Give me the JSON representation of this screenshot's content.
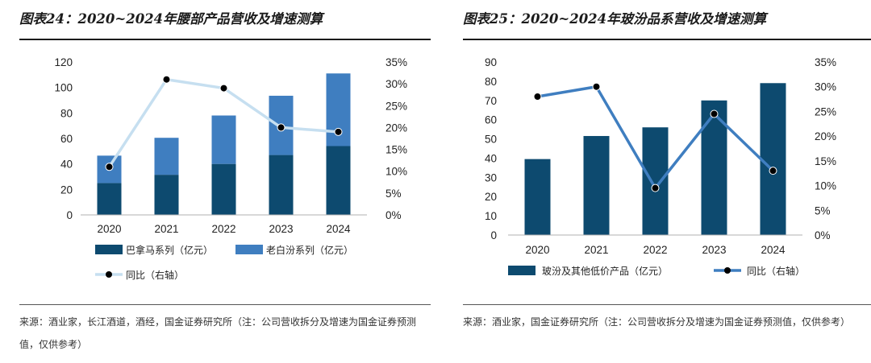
{
  "panels": [
    {
      "title": "图表24：2020~2024年腰部产品营收及增速测算",
      "source": "来源：酒业家，长江酒道，酒经，国金证券研究所（注：公司营收拆分及增速为国金证券预测值，仅供参考）"
    },
    {
      "title": "图表25：2020~2024年玻汾品系营收及增速测算",
      "source": "来源：酒业家，国金证券研究所（注：公司营收拆分及增速为国金证券预测值，仅供参考）"
    }
  ],
  "colors": {
    "dark": "#0d4a6f",
    "mid": "#3f7ec0",
    "line_light": "#c6dff0",
    "line_dark": "#3f7ec0",
    "marker": "#000000"
  },
  "chart_data": [
    {
      "type": "bar",
      "stacked": true,
      "categories": [
        "2020",
        "2021",
        "2022",
        "2023",
        "2024"
      ],
      "series": [
        {
          "name": "巴拿马系列（亿元）",
          "type": "bar",
          "axis": "left",
          "values": [
            25,
            31.5,
            40,
            47,
            54
          ]
        },
        {
          "name": "老白汾系列（亿元）",
          "type": "bar",
          "axis": "left",
          "values": [
            21.5,
            29,
            38,
            46.5,
            57
          ]
        },
        {
          "name": "同比（右轴）",
          "type": "line",
          "axis": "right",
          "values": [
            11,
            31,
            29,
            20,
            19
          ]
        }
      ],
      "left_axis": {
        "ylim": [
          0,
          120
        ],
        "ticks": [
          "0",
          "20",
          "40",
          "60",
          "80",
          "100",
          "120"
        ]
      },
      "right_axis": {
        "ylim": [
          0,
          35
        ],
        "ticks": [
          "0%",
          "5%",
          "10%",
          "15%",
          "20%",
          "25%",
          "30%",
          "35%"
        ]
      }
    },
    {
      "type": "bar",
      "categories": [
        "2020",
        "2021",
        "2022",
        "2023",
        "2024"
      ],
      "series": [
        {
          "name": "玻汾及其他低价产品（亿元）",
          "type": "bar",
          "axis": "left",
          "values": [
            39.5,
            51.5,
            56,
            70,
            79
          ]
        },
        {
          "name": "同比（右轴）",
          "type": "line",
          "axis": "right",
          "values": [
            28,
            30,
            9.5,
            24.5,
            13
          ]
        }
      ],
      "left_axis": {
        "ylim": [
          0,
          90
        ],
        "ticks": [
          "0",
          "10",
          "20",
          "30",
          "40",
          "50",
          "60",
          "70",
          "80",
          "90"
        ]
      },
      "right_axis": {
        "ylim": [
          0,
          35
        ],
        "ticks": [
          "0%",
          "5%",
          "10%",
          "15%",
          "20%",
          "25%",
          "30%",
          "35%"
        ]
      }
    }
  ]
}
